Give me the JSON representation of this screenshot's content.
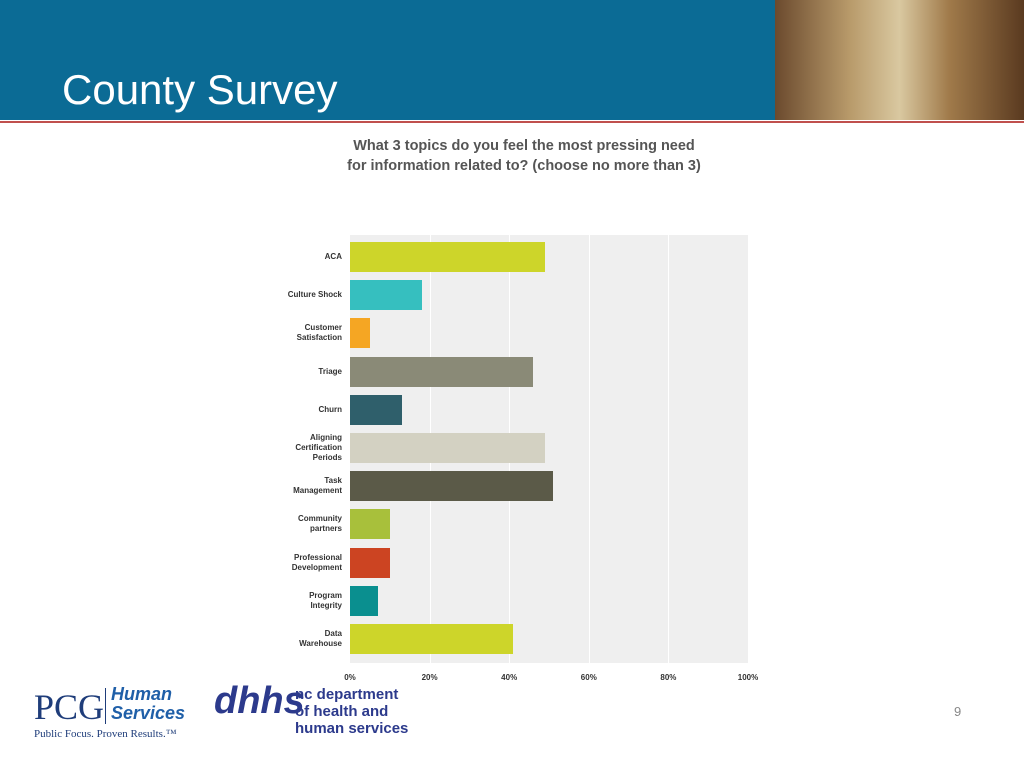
{
  "header": {
    "title": "County Survey"
  },
  "chart_data": {
    "type": "hbar",
    "title": "What 3 topics do you feel the most pressing need for information related to? (choose no more than 3)",
    "categories": [
      "ACA",
      "Culture Shock",
      "Customer\nSatisfaction",
      "Triage",
      "Churn",
      "Aligning\nCertification\nPeriods",
      "Task\nManagement",
      "Community\npartners",
      "Professional\nDevelopment",
      "Program\nIntegrity",
      "Data\nWarehouse"
    ],
    "values": [
      49,
      18,
      5,
      46,
      13,
      49,
      51,
      10,
      10,
      7,
      41
    ],
    "colors": [
      "#cdd52a",
      "#36bfbf",
      "#f5a623",
      "#8a8a77",
      "#2f5f6b",
      "#d3d1c2",
      "#5b5a48",
      "#a8c03b",
      "#cc4422",
      "#0a8f8f",
      "#cdd52a"
    ],
    "xlim": [
      0,
      100
    ],
    "xticks": [
      {
        "value": 0,
        "label": "0%"
      },
      {
        "value": 20,
        "label": "20%"
      },
      {
        "value": 40,
        "label": "40%"
      },
      {
        "value": 60,
        "label": "60%"
      },
      {
        "value": 80,
        "label": "80%"
      },
      {
        "value": 100,
        "label": "100%"
      }
    ],
    "grid": true
  },
  "footer": {
    "page_number": "9",
    "pcg": "PCG",
    "pcg_unit": "Human\nServices",
    "pcg_tagline": "Public Focus. Proven Results.™",
    "dhhs_mark": "dhhs",
    "dhhs_name": "nc department\nof health and\nhuman services"
  }
}
